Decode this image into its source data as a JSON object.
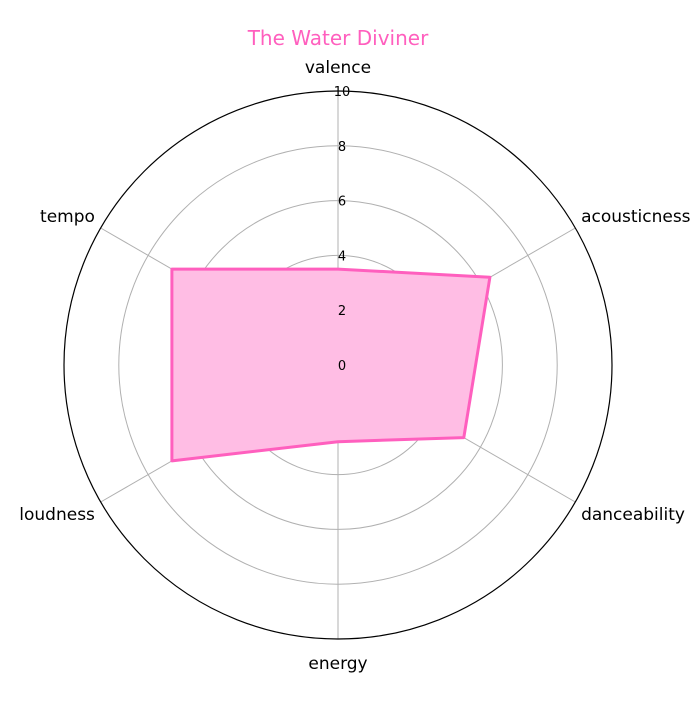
{
  "chart_data": {
    "type": "radar",
    "title": "The Water Diviner",
    "axes": [
      "valence",
      "acousticness",
      "danceability",
      "energy",
      "loudness",
      "tempo"
    ],
    "series": [
      {
        "values": [
          3.5,
          6.4,
          5.3,
          2.8,
          7.0,
          7.0
        ]
      }
    ],
    "rlim": [
      0,
      10
    ],
    "rticks": [
      0,
      2,
      4,
      6,
      8,
      10
    ],
    "colors": {
      "series": "#ff5fbe",
      "fill": "#ffbde4",
      "grid": "#b0b0b0",
      "frame": "#000000"
    }
  }
}
